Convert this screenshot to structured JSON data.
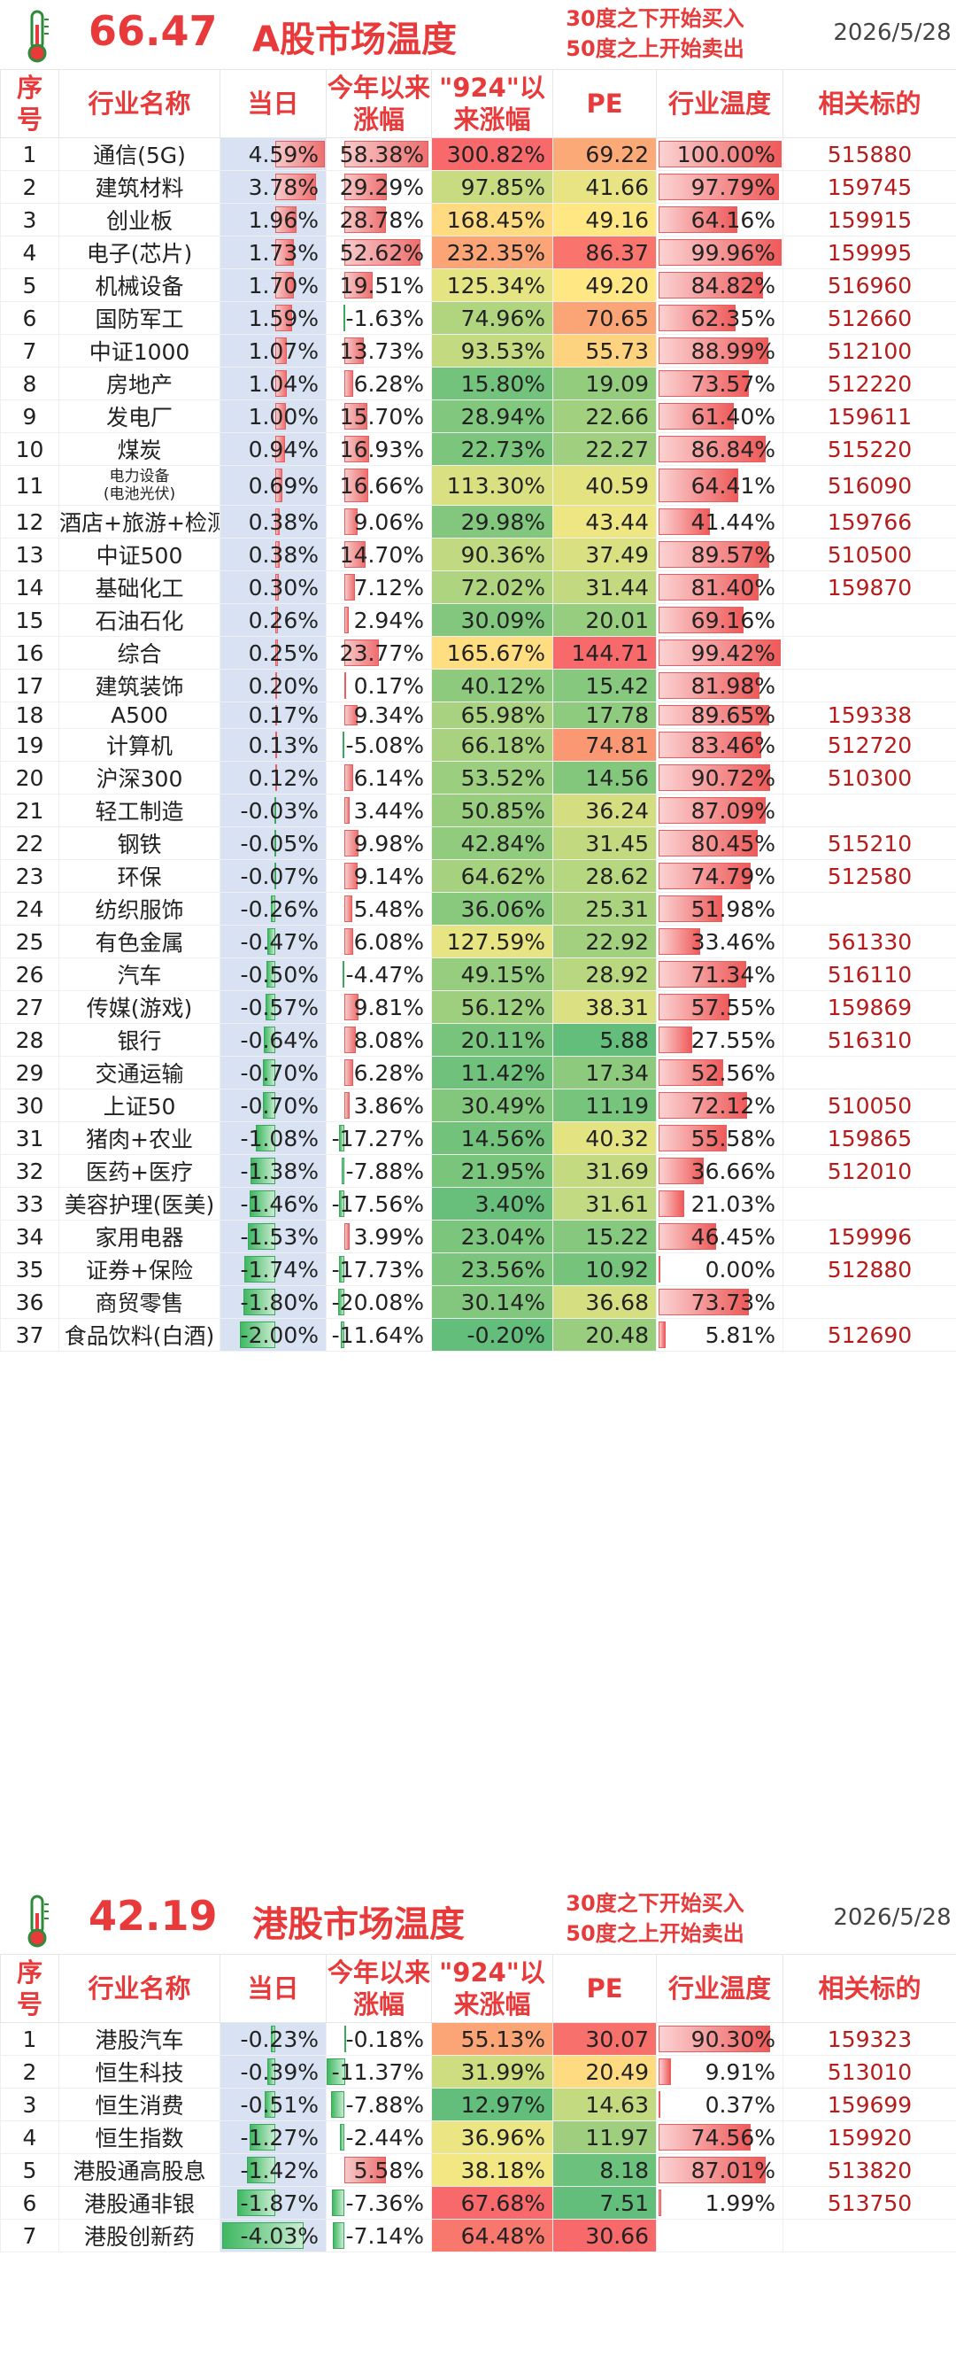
{
  "colors": {
    "accent": "#e83a3a",
    "code": "#b51c1c",
    "today_bg": "#d9e2f2",
    "heat_red": "#f8696b",
    "heat_yellow": "#ffeb84",
    "heat_green": "#63be7b"
  },
  "columns": [
    "序号",
    "行业名称",
    "当日",
    "今年以来涨幅",
    "\"924\"以来涨幅",
    "PE",
    "行业温度",
    "相关标的"
  ],
  "a_market": {
    "icon": "thermometer-icon",
    "temperature": "66.47",
    "title": "A股市场温度",
    "note_line1": "30度之下开始买入",
    "note_line2": "50度之上开始卖出",
    "date": "2026/5/28",
    "rows": [
      {
        "seq": "1",
        "name": "通信(5G)",
        "today": "4.59%",
        "ytd": "58.38%",
        "since924": "300.82%",
        "pe": "69.22",
        "temp": "100.00%",
        "code": "515880",
        "t": 4.59,
        "y": 58.38,
        "s": 300.82,
        "p": 69.22,
        "h": 100.0
      },
      {
        "seq": "2",
        "name": "建筑材料",
        "today": "3.78%",
        "ytd": "29.29%",
        "since924": "97.85%",
        "pe": "41.66",
        "temp": "97.79%",
        "code": "159745",
        "t": 3.78,
        "y": 29.29,
        "s": 97.85,
        "p": 41.66,
        "h": 97.79
      },
      {
        "seq": "3",
        "name": "创业板",
        "today": "1.96%",
        "ytd": "28.78%",
        "since924": "168.45%",
        "pe": "49.16",
        "temp": "64.16%",
        "code": "159915",
        "t": 1.96,
        "y": 28.78,
        "s": 168.45,
        "p": 49.16,
        "h": 64.16
      },
      {
        "seq": "4",
        "name": "电子(芯片)",
        "today": "1.73%",
        "ytd": "52.62%",
        "since924": "232.35%",
        "pe": "86.37",
        "temp": "99.96%",
        "code": "159995",
        "t": 1.73,
        "y": 52.62,
        "s": 232.35,
        "p": 86.37,
        "h": 99.96
      },
      {
        "seq": "5",
        "name": "机械设备",
        "today": "1.70%",
        "ytd": "19.51%",
        "since924": "125.34%",
        "pe": "49.20",
        "temp": "84.82%",
        "code": "516960",
        "t": 1.7,
        "y": 19.51,
        "s": 125.34,
        "p": 49.2,
        "h": 84.82
      },
      {
        "seq": "6",
        "name": "国防军工",
        "today": "1.59%",
        "ytd": "-1.63%",
        "since924": "74.96%",
        "pe": "70.65",
        "temp": "62.35%",
        "code": "512660",
        "t": 1.59,
        "y": -1.63,
        "s": 74.96,
        "p": 70.65,
        "h": 62.35
      },
      {
        "seq": "7",
        "name": "中证1000",
        "today": "1.07%",
        "ytd": "13.73%",
        "since924": "93.53%",
        "pe": "55.73",
        "temp": "88.99%",
        "code": "512100",
        "t": 1.07,
        "y": 13.73,
        "s": 93.53,
        "p": 55.73,
        "h": 88.99
      },
      {
        "seq": "8",
        "name": "房地产",
        "today": "1.04%",
        "ytd": "6.28%",
        "since924": "15.80%",
        "pe": "19.09",
        "temp": "73.57%",
        "code": "512220",
        "t": 1.04,
        "y": 6.28,
        "s": 15.8,
        "p": 19.09,
        "h": 73.57
      },
      {
        "seq": "9",
        "name": "发电厂",
        "today": "1.00%",
        "ytd": "15.70%",
        "since924": "28.94%",
        "pe": "22.66",
        "temp": "61.40%",
        "code": "159611",
        "t": 1.0,
        "y": 15.7,
        "s": 28.94,
        "p": 22.66,
        "h": 61.4
      },
      {
        "seq": "10",
        "name": "煤炭",
        "today": "0.94%",
        "ytd": "16.93%",
        "since924": "22.73%",
        "pe": "22.27",
        "temp": "86.84%",
        "code": "515220",
        "t": 0.94,
        "y": 16.93,
        "s": 22.73,
        "p": 22.27,
        "h": 86.84
      },
      {
        "seq": "11",
        "name": "电力设备\n(电池光伏)",
        "small": true,
        "today": "0.69%",
        "ytd": "16.66%",
        "since924": "113.30%",
        "pe": "40.59",
        "temp": "64.41%",
        "code": "516090",
        "t": 0.69,
        "y": 16.66,
        "s": 113.3,
        "p": 40.59,
        "h": 64.41
      },
      {
        "seq": "12",
        "name": "酒店+旅游+检测",
        "today": "0.38%",
        "ytd": "9.06%",
        "since924": "29.98%",
        "pe": "43.44",
        "temp": "41.44%",
        "code": "159766",
        "t": 0.38,
        "y": 9.06,
        "s": 29.98,
        "p": 43.44,
        "h": 41.44
      },
      {
        "seq": "13",
        "name": "中证500",
        "today": "0.38%",
        "ytd": "14.70%",
        "since924": "90.36%",
        "pe": "37.49",
        "temp": "89.57%",
        "code": "510500",
        "t": 0.38,
        "y": 14.7,
        "s": 90.36,
        "p": 37.49,
        "h": 89.57
      },
      {
        "seq": "14",
        "name": "基础化工",
        "today": "0.30%",
        "ytd": "7.12%",
        "since924": "72.02%",
        "pe": "31.44",
        "temp": "81.40%",
        "code": "159870",
        "t": 0.3,
        "y": 7.12,
        "s": 72.02,
        "p": 31.44,
        "h": 81.4
      },
      {
        "seq": "15",
        "name": "石油石化",
        "today": "0.26%",
        "ytd": "2.94%",
        "since924": "30.09%",
        "pe": "20.01",
        "temp": "69.16%",
        "code": "",
        "t": 0.26,
        "y": 2.94,
        "s": 30.09,
        "p": 20.01,
        "h": 69.16
      },
      {
        "seq": "16",
        "name": "综合",
        "today": "0.25%",
        "ytd": "23.77%",
        "since924": "165.67%",
        "pe": "144.71",
        "temp": "99.42%",
        "code": "",
        "t": 0.25,
        "y": 23.77,
        "s": 165.67,
        "p": 144.71,
        "h": 99.42
      },
      {
        "seq": "17",
        "name": "建筑装饰",
        "today": "0.20%",
        "ytd": "0.17%",
        "since924": "40.12%",
        "pe": "15.42",
        "temp": "81.98%",
        "code": "",
        "t": 0.2,
        "y": 0.17,
        "s": 40.12,
        "p": 15.42,
        "h": 81.98
      },
      {
        "seq": "18",
        "name": "A500",
        "today": "0.17%",
        "ytd": "9.34%",
        "since924": "65.98%",
        "pe": "17.78",
        "temp": "89.65%",
        "code": "159338",
        "t": 0.17,
        "y": 9.34,
        "s": 65.98,
        "p": 17.78,
        "h": 89.65
      },
      {
        "seq": "19",
        "name": "计算机",
        "today": "0.13%",
        "ytd": "-5.08%",
        "since924": "66.18%",
        "pe": "74.81",
        "temp": "83.46%",
        "code": "512720",
        "t": 0.13,
        "y": -5.08,
        "s": 66.18,
        "p": 74.81,
        "h": 83.46
      },
      {
        "seq": "20",
        "name": "沪深300",
        "today": "0.12%",
        "ytd": "6.14%",
        "since924": "53.52%",
        "pe": "14.56",
        "temp": "90.72%",
        "code": "510300",
        "t": 0.12,
        "y": 6.14,
        "s": 53.52,
        "p": 14.56,
        "h": 90.72
      },
      {
        "seq": "21",
        "name": "轻工制造",
        "today": "-0.03%",
        "ytd": "3.44%",
        "since924": "50.85%",
        "pe": "36.24",
        "temp": "87.09%",
        "code": "",
        "t": -0.03,
        "y": 3.44,
        "s": 50.85,
        "p": 36.24,
        "h": 87.09
      },
      {
        "seq": "22",
        "name": "钢铁",
        "today": "-0.05%",
        "ytd": "9.98%",
        "since924": "42.84%",
        "pe": "31.45",
        "temp": "80.45%",
        "code": "515210",
        "t": -0.05,
        "y": 9.98,
        "s": 42.84,
        "p": 31.45,
        "h": 80.45
      },
      {
        "seq": "23",
        "name": "环保",
        "today": "-0.07%",
        "ytd": "9.14%",
        "since924": "64.62%",
        "pe": "28.62",
        "temp": "74.79%",
        "code": "512580",
        "t": -0.07,
        "y": 9.14,
        "s": 64.62,
        "p": 28.62,
        "h": 74.79
      },
      {
        "seq": "24",
        "name": "纺织服饰",
        "today": "-0.26%",
        "ytd": "5.48%",
        "since924": "36.06%",
        "pe": "25.31",
        "temp": "51.98%",
        "code": "",
        "t": -0.26,
        "y": 5.48,
        "s": 36.06,
        "p": 25.31,
        "h": 51.98
      },
      {
        "seq": "25",
        "name": "有色金属",
        "today": "-0.47%",
        "ytd": "6.08%",
        "since924": "127.59%",
        "pe": "22.92",
        "temp": "33.46%",
        "code": "561330",
        "t": -0.47,
        "y": 6.08,
        "s": 127.59,
        "p": 22.92,
        "h": 33.46
      },
      {
        "seq": "26",
        "name": "汽车",
        "today": "-0.50%",
        "ytd": "-4.47%",
        "since924": "49.15%",
        "pe": "28.92",
        "temp": "71.34%",
        "code": "516110",
        "t": -0.5,
        "y": -4.47,
        "s": 49.15,
        "p": 28.92,
        "h": 71.34
      },
      {
        "seq": "27",
        "name": "传媒(游戏)",
        "today": "-0.57%",
        "ytd": "9.81%",
        "since924": "56.12%",
        "pe": "38.31",
        "temp": "57.55%",
        "code": "159869",
        "t": -0.57,
        "y": 9.81,
        "s": 56.12,
        "p": 38.31,
        "h": 57.55
      },
      {
        "seq": "28",
        "name": "银行",
        "today": "-0.64%",
        "ytd": "8.08%",
        "since924": "20.11%",
        "pe": "5.88",
        "temp": "27.55%",
        "code": "516310",
        "t": -0.64,
        "y": 8.08,
        "s": 20.11,
        "p": 5.88,
        "h": 27.55
      },
      {
        "seq": "29",
        "name": "交通运输",
        "today": "-0.70%",
        "ytd": "6.28%",
        "since924": "11.42%",
        "pe": "17.34",
        "temp": "52.56%",
        "code": "",
        "t": -0.7,
        "y": 6.28,
        "s": 11.42,
        "p": 17.34,
        "h": 52.56
      },
      {
        "seq": "30",
        "name": "上证50",
        "today": "-0.70%",
        "ytd": "3.86%",
        "since924": "30.49%",
        "pe": "11.19",
        "temp": "72.12%",
        "code": "510050",
        "t": -0.7,
        "y": 3.86,
        "s": 30.49,
        "p": 11.19,
        "h": 72.12
      },
      {
        "seq": "31",
        "name": "猪肉+农业",
        "today": "-1.08%",
        "ytd": "-17.27%",
        "since924": "14.56%",
        "pe": "40.32",
        "temp": "55.58%",
        "code": "159865",
        "t": -1.08,
        "y": -17.27,
        "s": 14.56,
        "p": 40.32,
        "h": 55.58
      },
      {
        "seq": "32",
        "name": "医药+医疗",
        "today": "-1.38%",
        "ytd": "-7.88%",
        "since924": "21.95%",
        "pe": "31.69",
        "temp": "36.66%",
        "code": "512010",
        "t": -1.38,
        "y": -7.88,
        "s": 21.95,
        "p": 31.69,
        "h": 36.66
      },
      {
        "seq": "33",
        "name": "美容护理(医美)",
        "today": "-1.46%",
        "ytd": "-17.56%",
        "since924": "3.40%",
        "pe": "31.61",
        "temp": "21.03%",
        "code": "",
        "t": -1.46,
        "y": -17.56,
        "s": 3.4,
        "p": 31.61,
        "h": 21.03
      },
      {
        "seq": "34",
        "name": "家用电器",
        "today": "-1.53%",
        "ytd": "3.99%",
        "since924": "23.04%",
        "pe": "15.22",
        "temp": "46.45%",
        "code": "159996",
        "t": -1.53,
        "y": 3.99,
        "s": 23.04,
        "p": 15.22,
        "h": 46.45
      },
      {
        "seq": "35",
        "name": "证券+保险",
        "today": "-1.74%",
        "ytd": "-17.73%",
        "since924": "23.56%",
        "pe": "10.92",
        "temp": "0.00%",
        "code": "512880",
        "t": -1.74,
        "y": -17.73,
        "s": 23.56,
        "p": 10.92,
        "h": 0.0
      },
      {
        "seq": "36",
        "name": "商贸零售",
        "today": "-1.80%",
        "ytd": "-20.08%",
        "since924": "30.14%",
        "pe": "36.68",
        "temp": "73.73%",
        "code": "",
        "t": -1.8,
        "y": -20.08,
        "s": 30.14,
        "p": 36.68,
        "h": 73.73
      },
      {
        "seq": "37",
        "name": "食品饮料(白酒)",
        "today": "-2.00%",
        "ytd": "-11.64%",
        "since924": "-0.20%",
        "pe": "20.48",
        "temp": "5.81%",
        "code": "512690",
        "t": -2.0,
        "y": -11.64,
        "s": -0.2,
        "p": 20.48,
        "h": 5.81
      }
    ]
  },
  "hk_market": {
    "icon": "thermometer-icon",
    "temperature": "42.19",
    "title": "港股市场温度",
    "note_line1": "30度之下开始买入",
    "note_line2": "50度之上开始卖出",
    "date": "2026/5/28",
    "rows": [
      {
        "seq": "1",
        "name": "港股汽车",
        "today": "-0.23%",
        "ytd": "-0.18%",
        "since924": "55.13%",
        "pe": "30.07",
        "temp": "90.30%",
        "code": "159323",
        "t": -0.23,
        "y": -0.18,
        "s": 55.13,
        "p": 30.07,
        "h": 90.3
      },
      {
        "seq": "2",
        "name": "恒生科技",
        "today": "-0.39%",
        "ytd": "-11.37%",
        "since924": "31.99%",
        "pe": "20.49",
        "temp": "9.91%",
        "code": "513010",
        "t": -0.39,
        "y": -11.37,
        "s": 31.99,
        "p": 20.49,
        "h": 9.91
      },
      {
        "seq": "3",
        "name": "恒生消费",
        "today": "-0.51%",
        "ytd": "-7.88%",
        "since924": "12.97%",
        "pe": "14.63",
        "temp": "0.37%",
        "code": "159699",
        "t": -0.51,
        "y": -7.88,
        "s": 12.97,
        "p": 14.63,
        "h": 0.37
      },
      {
        "seq": "4",
        "name": "恒生指数",
        "today": "-1.27%",
        "ytd": "-2.44%",
        "since924": "36.96%",
        "pe": "11.97",
        "temp": "74.56%",
        "code": "159920",
        "t": -1.27,
        "y": -2.44,
        "s": 36.96,
        "p": 11.97,
        "h": 74.56
      },
      {
        "seq": "5",
        "name": "港股通高股息",
        "today": "-1.42%",
        "ytd": "5.58%",
        "since924": "38.18%",
        "pe": "8.18",
        "temp": "87.01%",
        "code": "513820",
        "t": -1.42,
        "y": 5.58,
        "s": 38.18,
        "p": 8.18,
        "h": 87.01
      },
      {
        "seq": "6",
        "name": "港股通非银",
        "today": "-1.87%",
        "ytd": "-7.36%",
        "since924": "67.68%",
        "pe": "7.51",
        "temp": "1.99%",
        "code": "513750",
        "t": -1.87,
        "y": -7.36,
        "s": 67.68,
        "p": 7.51,
        "h": 1.99
      },
      {
        "seq": "7",
        "name": "港股创新药",
        "today": "-4.03%",
        "ytd": "-7.14%",
        "since924": "64.48%",
        "pe": "30.66",
        "temp": "",
        "code": "",
        "t": -4.03,
        "y": -7.14,
        "s": 64.48,
        "p": 30.66,
        "h": null
      }
    ]
  }
}
